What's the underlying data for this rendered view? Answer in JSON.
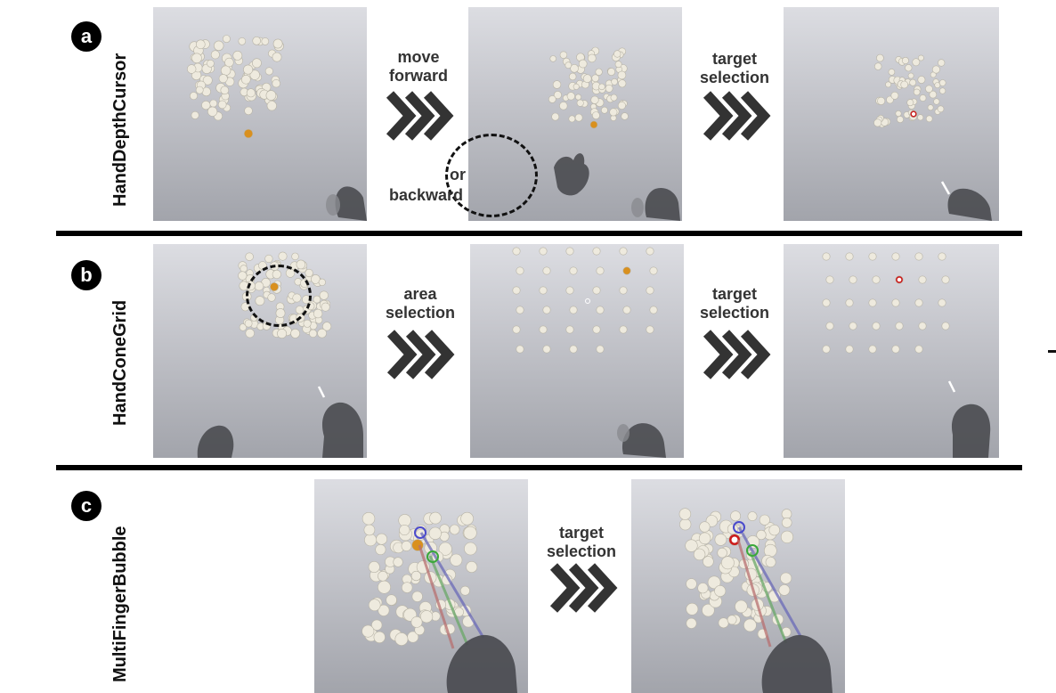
{
  "rows": [
    {
      "badge": "a",
      "technique": "HandDepthCursor",
      "step1": {
        "line1": "move",
        "line2": "forward"
      },
      "step1_alt": {
        "line1": "or",
        "line2": "backward"
      },
      "step2": {
        "line1": "target",
        "line2": "selection"
      }
    },
    {
      "badge": "b",
      "technique": "HandConeGrid",
      "step1": {
        "line1": "area",
        "line2": "selection"
      },
      "step2": {
        "line1": "target",
        "line2": "selection"
      }
    },
    {
      "badge": "c",
      "technique": "MultiFingerBubble",
      "step1": {
        "line1": "target",
        "line2": "selection"
      }
    }
  ],
  "colors": {
    "sphere": "#eeeade",
    "highlight": "#d9901e",
    "selected": "#cc1b1b",
    "hand": "#4a4b50",
    "chevron": "#333333",
    "ray_red": "#b87070",
    "ray_green": "#6aa868",
    "ray_blue": "#6a6ab8"
  }
}
